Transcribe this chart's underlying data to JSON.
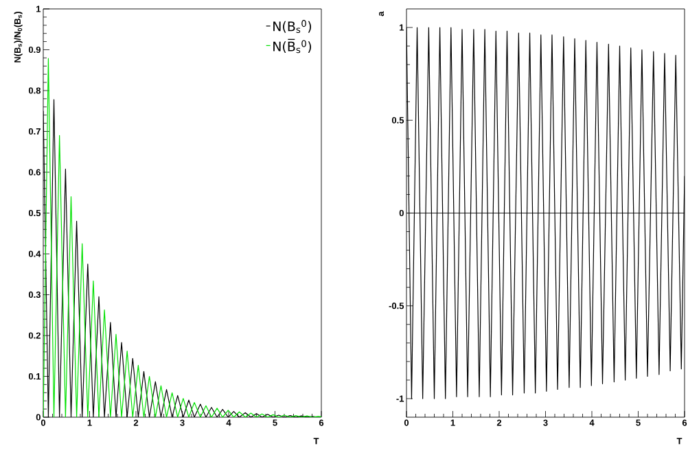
{
  "chart_data": [
    {
      "type": "line",
      "ylabel": "N(B$_{s}$)/N$_{0}$(B$_{s}$)",
      "xlabel": "T",
      "xlim": [
        0,
        6
      ],
      "ylim": [
        0,
        1
      ],
      "xticks": [
        0,
        1,
        2,
        3,
        4,
        5,
        6
      ],
      "yticks": [
        0,
        0.1,
        0.2,
        0.3,
        0.4,
        0.5,
        0.6,
        0.7,
        0.8,
        0.9,
        1
      ],
      "legend": "top right",
      "series": [
        {
          "name": "N(B$_{s}$$^{0}$)",
          "color": "#000000",
          "x": [
            0,
            0.11,
            0.23,
            0.35,
            0.48,
            0.6,
            0.72,
            0.84,
            0.96,
            1.08,
            1.2,
            1.32,
            1.45,
            1.57,
            1.69,
            1.81,
            1.93,
            2.05,
            2.17,
            2.29,
            2.42,
            2.54,
            2.66,
            2.78,
            2.9,
            3.02,
            3.14,
            3.26,
            3.39,
            3.51,
            3.63,
            3.75,
            3.87,
            3.99,
            4.11,
            4.23,
            4.36,
            4.48,
            4.6,
            4.72,
            4.84,
            4.96,
            5.08,
            5.2,
            5.33,
            5.45,
            5.57,
            5.69,
            5.81,
            5.93,
            6
          ],
          "values": [
            0.75,
            0,
            0.778,
            0,
            0.608,
            0,
            0.48,
            0,
            0.375,
            0,
            0.295,
            0,
            0.232,
            0,
            0.183,
            0,
            0.144,
            0,
            0.112,
            0,
            0.087,
            0,
            0.068,
            0,
            0.053,
            0,
            0.042,
            0,
            0.032,
            0,
            0.024,
            0,
            0.019,
            0,
            0.014,
            0,
            0.011,
            0,
            0.009,
            0,
            0.007,
            0,
            0.005,
            0,
            0.004,
            0,
            0.003,
            0,
            0.002,
            0,
            0.001
          ]
        },
        {
          "name": "N(B̅$_{s}$$^{0}$)",
          "color": "#00e000",
          "x": [
            0,
            0.11,
            0.23,
            0.35,
            0.48,
            0.6,
            0.72,
            0.84,
            0.96,
            1.08,
            1.2,
            1.32,
            1.45,
            1.57,
            1.69,
            1.81,
            1.93,
            2.05,
            2.17,
            2.29,
            2.42,
            2.54,
            2.66,
            2.78,
            2.9,
            3.02,
            3.14,
            3.26,
            3.39,
            3.51,
            3.63,
            3.75,
            3.87,
            3.99,
            4.11,
            4.23,
            4.36,
            4.48,
            4.6,
            4.72,
            4.84,
            4.96,
            5.08,
            5.2,
            5.33,
            5.45,
            5.57,
            5.69,
            5.81,
            5.93,
            6
          ],
          "values": [
            0,
            0.879,
            0,
            0.69,
            0,
            0.54,
            0,
            0.425,
            0,
            0.334,
            0,
            0.263,
            0,
            0.203,
            0,
            0.162,
            0,
            0.127,
            0,
            0.1,
            0,
            0.077,
            0,
            0.06,
            0,
            0.046,
            0,
            0.036,
            0,
            0.028,
            0,
            0.022,
            0,
            0.017,
            0,
            0.013,
            0,
            0.01,
            0,
            0.008,
            0,
            0.006,
            0,
            0.005,
            0,
            0.004,
            0,
            0.003,
            0,
            0.002,
            0.001
          ]
        }
      ]
    },
    {
      "type": "line",
      "ylabel": "a",
      "xlabel": "T",
      "xlim": [
        0,
        6
      ],
      "ylim": [
        -1.1,
        1.1
      ],
      "xticks": [
        0,
        1,
        2,
        3,
        4,
        5,
        6
      ],
      "yticks": [
        -1,
        -0.5,
        0,
        0.5,
        1
      ],
      "ref_lines": [
        {
          "axis": "y",
          "value": 0,
          "color": "#000000"
        }
      ],
      "series": [
        {
          "color": "#000000",
          "x": [
            0,
            0.11,
            0.23,
            0.35,
            0.48,
            0.6,
            0.72,
            0.84,
            0.96,
            1.08,
            1.2,
            1.32,
            1.45,
            1.57,
            1.69,
            1.81,
            1.93,
            2.05,
            2.17,
            2.29,
            2.42,
            2.54,
            2.66,
            2.78,
            2.9,
            3.02,
            3.14,
            3.26,
            3.39,
            3.51,
            3.63,
            3.75,
            3.87,
            3.99,
            4.11,
            4.23,
            4.36,
            4.48,
            4.6,
            4.72,
            4.84,
            4.96,
            5.08,
            5.2,
            5.33,
            5.45,
            5.57,
            5.69,
            5.81,
            5.93,
            6
          ],
          "values": [
            1,
            -1,
            1,
            -1,
            1,
            -1,
            1,
            -1,
            1,
            -0.99,
            0.99,
            -0.99,
            0.99,
            -0.99,
            0.99,
            -0.99,
            0.98,
            -0.98,
            0.98,
            -0.98,
            0.97,
            -0.97,
            0.97,
            -0.97,
            0.96,
            -0.96,
            0.96,
            -0.95,
            0.95,
            -0.94,
            0.94,
            -0.94,
            0.93,
            -0.93,
            0.92,
            -0.92,
            0.91,
            -0.91,
            0.9,
            -0.9,
            0.89,
            -0.89,
            0.88,
            -0.88,
            0.87,
            -0.87,
            0.86,
            -0.85,
            0.85,
            -0.84,
            0.2
          ]
        }
      ]
    }
  ]
}
